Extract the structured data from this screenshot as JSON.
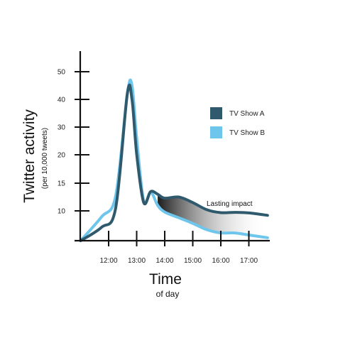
{
  "chart_data": {
    "type": "line",
    "xlabel": "Time",
    "xlabel_sub": "of day",
    "ylabel": "Twitter activity",
    "ylabel_sub": "(per 10,000 tweets)",
    "x_ticks": [
      "12:00",
      "13:00",
      "14:00",
      "15:00",
      "16:00",
      "17:00"
    ],
    "y_ticks": [
      10,
      15,
      20,
      30,
      40,
      50
    ],
    "annotation": "Lasting impact",
    "legend_position": "right",
    "grid": false,
    "series": [
      {
        "name": "TV Show A",
        "color": "#2f5a6e",
        "x": [
          "11:00",
          "11:45",
          "12:15",
          "12:40",
          "12:50",
          "13:00",
          "13:15",
          "13:30",
          "13:45",
          "14:00",
          "14:30",
          "15:00",
          "15:30",
          "16:00",
          "16:30",
          "17:00",
          "17:40"
        ],
        "values": [
          0,
          4.5,
          10.5,
          42,
          40,
          20.2,
          11.5,
          13.5,
          13,
          12.3,
          12.5,
          11.5,
          10.2,
          9.4,
          9.5,
          9.3,
          8.5
        ]
      },
      {
        "name": "TV Show B",
        "color": "#6ec6ec",
        "x": [
          "11:00",
          "11:45",
          "12:15",
          "12:40",
          "12:50",
          "13:00",
          "13:15",
          "13:30",
          "13:45",
          "14:00",
          "14:30",
          "15:00",
          "15:30",
          "16:00",
          "16:30",
          "17:00",
          "17:40"
        ],
        "values": [
          0,
          8,
          12.7,
          42,
          45,
          26,
          11.8,
          13.4,
          11,
          9.6,
          7.7,
          5.8,
          3.7,
          2.6,
          2.6,
          1.9,
          1
        ]
      }
    ]
  }
}
